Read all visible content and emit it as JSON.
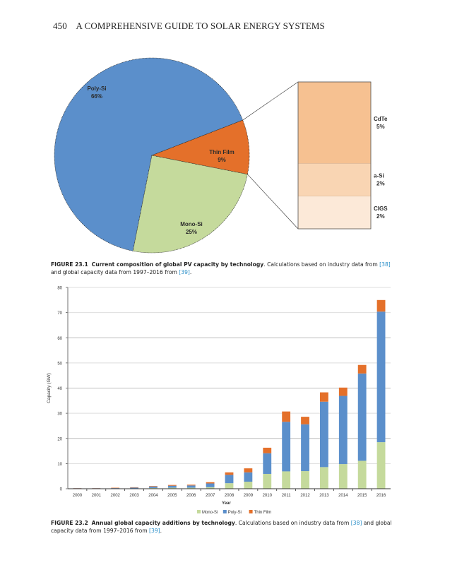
{
  "page": {
    "number": "450",
    "running_title": "A COMPREHENSIVE GUIDE TO SOLAR ENERGY SYSTEMS"
  },
  "figure1": {
    "label": "FIGURE 23.1",
    "title": "Current composition of global PV capacity by technology",
    "text_a": ". Calculations based on industry data from ",
    "ref_a": "[38]",
    "text_b": " and global capacity data from 1997–2016 from ",
    "ref_b": "[39]",
    "text_c": "."
  },
  "figure2": {
    "label": "FIGURE 23.2",
    "title": "Annual global capacity additions by technology",
    "text_a": ". Calculations based on industry data from ",
    "ref_a": "[38]",
    "text_b": " and global capacity data from 1997–2016 from ",
    "ref_b": "[39]",
    "text_c": "."
  },
  "colors": {
    "mono": "#c5da9c",
    "poly": "#5b8fcb",
    "thin": "#e4702a",
    "cdte": "#f6c191",
    "asi": "#f9d5b3",
    "cigs": "#fce9d8",
    "ref": "#2a8fc9"
  },
  "chart_data": [
    {
      "type": "pie",
      "title": "",
      "slices": [
        {
          "label": "Poly-Si",
          "value": 66,
          "value_label": "66%",
          "color": "#5b8fcb"
        },
        {
          "label": "Thin Film",
          "value": 9,
          "value_label": "9%",
          "color": "#e4702a"
        },
        {
          "label": "Mono-Si",
          "value": 25,
          "value_label": "25%",
          "color": "#c5da9c"
        }
      ],
      "breakout": {
        "of": "Thin Film",
        "type": "stacked-bar",
        "segments": [
          {
            "label": "CdTe",
            "value": 5,
            "value_label": "5%",
            "color": "#f6c191"
          },
          {
            "label": "a-Si",
            "value": 2,
            "value_label": "2%",
            "color": "#f9d5b3"
          },
          {
            "label": "CIGS",
            "value": 2,
            "value_label": "2%",
            "color": "#fce9d8"
          }
        ]
      }
    },
    {
      "type": "bar",
      "stacked": true,
      "title": "",
      "xlabel": "Year",
      "ylabel": "Capacity (GW)",
      "ylim": [
        0,
        80
      ],
      "yticks": [
        0,
        10,
        20,
        30,
        40,
        50,
        60,
        70,
        80
      ],
      "grid": true,
      "legend": "bottom",
      "categories": [
        "2000",
        "2001",
        "2002",
        "2003",
        "2004",
        "2005",
        "2006",
        "2007",
        "2008",
        "2009",
        "2010",
        "2011",
        "2012",
        "2013",
        "2014",
        "2015",
        "2016"
      ],
      "series": [
        {
          "name": "Mono-Si",
          "color": "#c5da9c",
          "values": [
            0.1,
            0.1,
            0.1,
            0.15,
            0.3,
            0.4,
            0.4,
            0.6,
            2.2,
            2.8,
            5.9,
            6.9,
            7.0,
            8.6,
            9.8,
            11.1,
            18.5
          ]
        },
        {
          "name": "Poly-Si",
          "color": "#5b8fcb",
          "values": [
            0.1,
            0.1,
            0.15,
            0.3,
            0.6,
            0.8,
            0.9,
            1.5,
            3.3,
            3.7,
            8.2,
            19.7,
            18.6,
            26.0,
            27.1,
            34.7,
            51.9
          ]
        },
        {
          "name": "Thin Film",
          "color": "#e4702a",
          "values": [
            0.05,
            0.05,
            0.15,
            0.15,
            0.2,
            0.3,
            0.3,
            0.5,
            1.0,
            1.6,
            2.2,
            4.1,
            3.0,
            3.7,
            3.3,
            3.4,
            4.6
          ]
        }
      ]
    }
  ]
}
